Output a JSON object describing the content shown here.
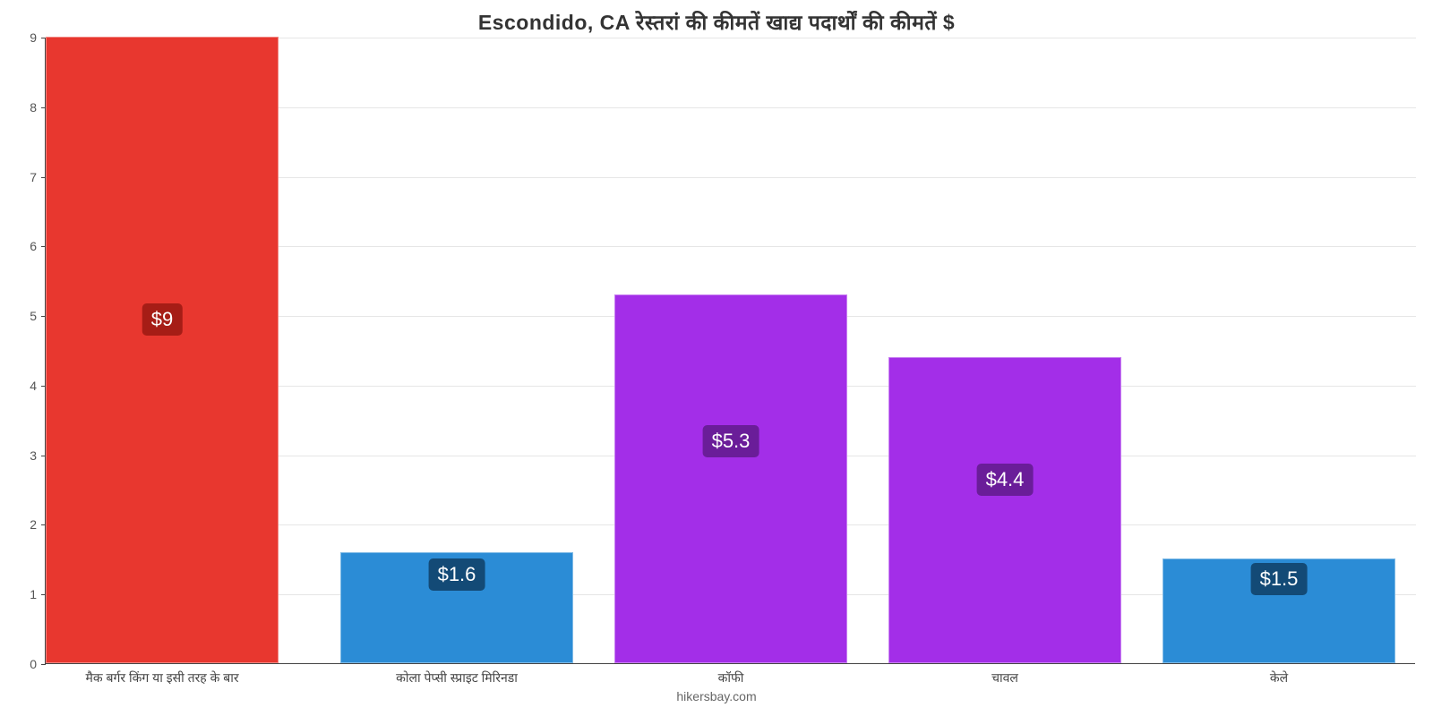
{
  "chart": {
    "type": "bar",
    "title": "Escondido, CA रेस्तरां की कीमतें खाद्य पदार्थों की कीमतें $",
    "title_fontsize": 23,
    "title_color": "#333333",
    "attribution": "hikersbay.com",
    "attribution_color": "#666666",
    "background_color": "#ffffff",
    "grid_color": "#e6e6e6",
    "axis_color": "#444444",
    "ylim": [
      0,
      9
    ],
    "ytick_step": 1,
    "yticks": [
      0,
      1,
      2,
      3,
      4,
      5,
      6,
      7,
      8,
      9
    ],
    "ytick_fontsize": 14,
    "xlabel_fontsize": 14,
    "bar_width_ratio": 0.85,
    "categories": [
      "मैक बर्गर किंग या इसी तरह के बार",
      "कोला पेप्सी स्प्राइट मिरिनडा",
      "कॉफी",
      "चावल",
      "केले"
    ],
    "values": [
      9,
      1.6,
      5.3,
      4.4,
      1.5
    ],
    "value_labels": [
      "$9",
      "$1.6",
      "$5.3",
      "$4.4",
      "$1.5"
    ],
    "bar_colors": [
      "#e8372f",
      "#2b8cd6",
      "#a32ee8",
      "#a32ee8",
      "#2b8cd6"
    ],
    "label_bg_colors": [
      "#a61d16",
      "#134a76",
      "#6a1d99",
      "#6a1d99",
      "#134a76"
    ],
    "label_fontsize": 22,
    "label_text_color": "#ffffff",
    "label_y_positions": [
      4.95,
      1.28,
      3.2,
      2.65,
      1.22
    ]
  }
}
